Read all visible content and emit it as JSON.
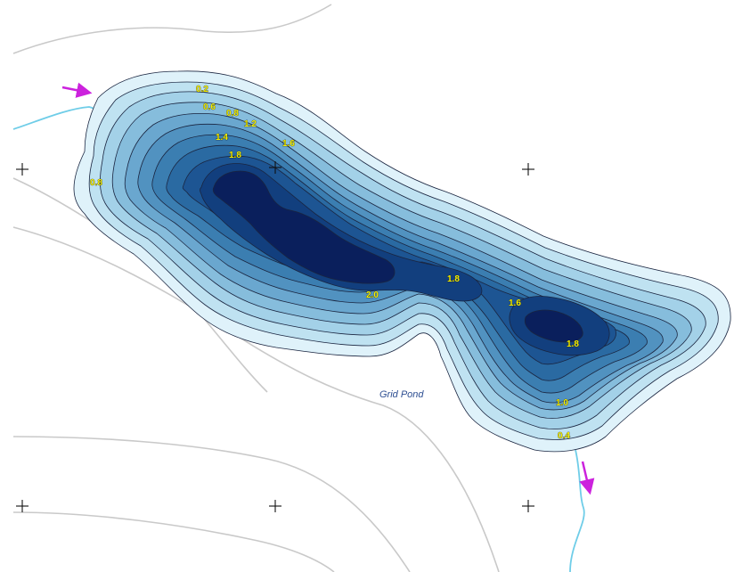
{
  "map": {
    "pond_name": "Grid Pond",
    "depth_labels": [
      "0.2",
      "0.6",
      "0.8",
      "1.2",
      "1.4",
      "1.6",
      "1.8",
      "0.8",
      "1.8",
      "2.0",
      "1.6",
      "1.8",
      "1.0",
      "0.4"
    ],
    "colors": {
      "shallow": "#dff2fa",
      "deep": "#0a1f5c",
      "stream": "#6fcde8",
      "flow_arrow": "#cc22dd",
      "label_fill": "#f5f000",
      "road": "#c9c9c9"
    },
    "features": {
      "inflow_arrow": "inflow-arrow-icon",
      "outflow_arrow": "outflow-arrow-icon",
      "grid_mark": "grid-cross-icon"
    }
  }
}
